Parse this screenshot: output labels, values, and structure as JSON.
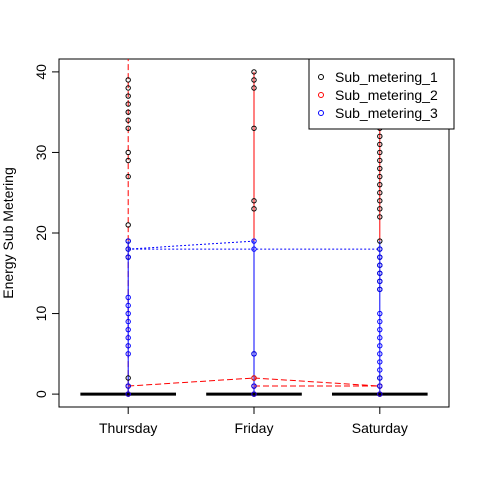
{
  "chart_data": {
    "type": "scatter",
    "title": "",
    "xlabel": "",
    "ylabel": "Energy Sub Metering",
    "x_ticks": [
      {
        "pos": 0,
        "label": "Thursday"
      },
      {
        "pos": 1,
        "label": "Friday"
      },
      {
        "pos": 2,
        "label": "Saturday"
      }
    ],
    "xlim": [
      -0.55,
      2.55
    ],
    "ylim": [
      -1.6,
      41.6
    ],
    "y_ticks": [
      0,
      10,
      20,
      30,
      40
    ],
    "grid": false,
    "legend_position": "top-right",
    "series": [
      {
        "name": "Sub_metering_1",
        "color": "#000000",
        "line_style": "solid",
        "groups": [
          {
            "x": 0,
            "values": [
              0,
              1,
              2,
              17,
              18,
              19,
              21,
              27,
              29,
              30,
              33,
              34,
              35,
              36,
              37,
              38,
              39
            ]
          },
          {
            "x": 1,
            "values": [
              0,
              1,
              2,
              5,
              23,
              24,
              33,
              38,
              39,
              40
            ]
          },
          {
            "x": 2,
            "values": [
              0,
              1,
              2,
              13,
              14,
              15,
              16,
              17,
              18,
              19,
              22,
              23,
              24,
              25,
              26,
              27,
              28,
              29,
              30,
              31,
              32,
              33
            ]
          }
        ]
      },
      {
        "name": "Sub_metering_2",
        "color": "#ff0000",
        "line_style": "dashed",
        "groups": [
          {
            "x": 0,
            "values": [
              0,
              1
            ]
          },
          {
            "x": 1,
            "values": [
              0,
              1,
              2
            ]
          },
          {
            "x": 2,
            "values": [
              0,
              1
            ]
          }
        ]
      },
      {
        "name": "Sub_metering_3",
        "color": "#0000ff",
        "line_style": "dotted",
        "groups": [
          {
            "x": 0,
            "values": [
              0,
              1,
              5,
              6,
              7,
              8,
              9,
              10,
              11,
              12,
              17,
              18,
              19
            ]
          },
          {
            "x": 1,
            "values": [
              0,
              1,
              5,
              18,
              19
            ]
          },
          {
            "x": 2,
            "values": [
              0,
              1,
              2,
              3,
              4,
              5,
              6,
              7,
              8,
              9,
              10,
              13,
              14,
              15,
              16,
              17,
              18
            ]
          }
        ]
      }
    ],
    "connector_lines": [
      {
        "series": "Sub_metering_3",
        "color": "#0000ff",
        "style": "dotted",
        "points": [
          [
            0,
            18
          ],
          [
            1,
            19
          ]
        ]
      },
      {
        "series": "Sub_metering_3",
        "color": "#0000ff",
        "style": "dotted",
        "points": [
          [
            0,
            18
          ],
          [
            2,
            18
          ]
        ]
      },
      {
        "series": "Sub_metering_2",
        "color": "#ff0000",
        "style": "dashed",
        "points": [
          [
            0,
            1
          ],
          [
            1,
            2
          ],
          [
            2,
            1
          ]
        ]
      },
      {
        "series": "Sub_metering_2",
        "color": "#ff0000",
        "style": "dashed",
        "points": [
          [
            1,
            1
          ],
          [
            2,
            1
          ]
        ]
      }
    ],
    "vertical_lines": [
      {
        "series": "Sub_metering_2",
        "color": "#ff0000",
        "style": "dashed",
        "x": 0,
        "y0": 0,
        "y1": 41.6
      },
      {
        "series": "Sub_metering_2",
        "color": "#ff0000",
        "style": "solid",
        "x": 1,
        "y0": 19,
        "y1": 40
      },
      {
        "series": "Sub_metering_2",
        "color": "#ff0000",
        "style": "solid",
        "x": 2,
        "y0": 19,
        "y1": 33
      },
      {
        "series": "Sub_metering_3",
        "color": "#0000ff",
        "style": "solid",
        "x": 0,
        "y0": 0,
        "y1": 19
      },
      {
        "series": "Sub_metering_3",
        "color": "#0000ff",
        "style": "solid",
        "x": 1,
        "y0": 0,
        "y1": 19
      },
      {
        "series": "Sub_metering_3",
        "color": "#0000ff",
        "style": "solid",
        "x": 2,
        "y0": 0,
        "y1": 19
      }
    ],
    "baseline_segments": [
      {
        "color": "#000000",
        "x0": -0.38,
        "x1": 0.38,
        "y": 0
      },
      {
        "color": "#000000",
        "x0": 0.62,
        "x1": 1.38,
        "y": 0
      },
      {
        "color": "#000000",
        "x0": 1.62,
        "x1": 2.38,
        "y": 0
      }
    ]
  }
}
